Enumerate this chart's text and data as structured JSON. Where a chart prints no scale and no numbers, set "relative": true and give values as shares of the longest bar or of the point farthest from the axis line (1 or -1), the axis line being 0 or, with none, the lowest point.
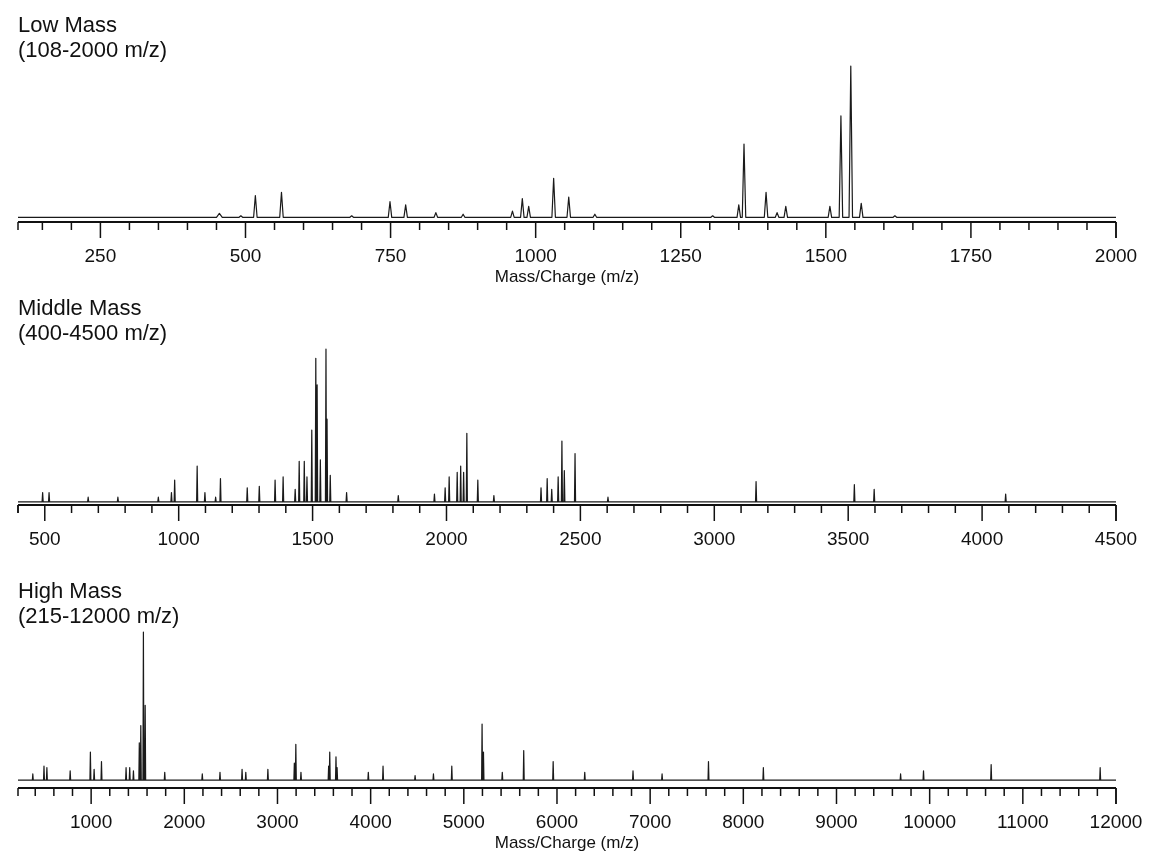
{
  "chart_data": [
    {
      "type": "line",
      "title": "Low Mass",
      "subtitle": "(108-2000 m/z)",
      "xlabel": "Mass/Charge (m/z)",
      "relative": true,
      "color": "#1a1a1a",
      "xlim": [
        108,
        2000
      ],
      "xticks": [
        {
          "value": 150,
          "label": null
        },
        {
          "value": 200,
          "label": null
        },
        250,
        {
          "value": 300,
          "label": null
        },
        {
          "value": 350,
          "label": null
        },
        {
          "value": 400,
          "label": null
        },
        {
          "value": 450,
          "label": null
        },
        500,
        {
          "value": 550,
          "label": null
        },
        {
          "value": 600,
          "label": null
        },
        {
          "value": 650,
          "label": null
        },
        {
          "value": 700,
          "label": null
        },
        750,
        {
          "value": 800,
          "label": null
        },
        {
          "value": 850,
          "label": null
        },
        {
          "value": 900,
          "label": null
        },
        {
          "value": 950,
          "label": null
        },
        1000,
        {
          "value": 1050,
          "label": null
        },
        {
          "value": 1100,
          "label": null
        },
        {
          "value": 1150,
          "label": null
        },
        {
          "value": 1200,
          "label": null
        },
        1250,
        {
          "value": 1300,
          "label": null
        },
        {
          "value": 1350,
          "label": null
        },
        {
          "value": 1400,
          "label": null
        },
        {
          "value": 1450,
          "label": null
        },
        1500,
        {
          "value": 1550,
          "label": null
        },
        {
          "value": 1600,
          "label": null
        },
        {
          "value": 1650,
          "label": null
        },
        {
          "value": 1700,
          "label": null
        },
        1750,
        {
          "value": 1800,
          "label": null
        },
        {
          "value": 1850,
          "label": null
        },
        {
          "value": 1900,
          "label": null
        },
        {
          "value": 1950,
          "label": null
        },
        2000
      ],
      "x": [
        108,
        450,
        455,
        460,
        489,
        492,
        495,
        514,
        517,
        520,
        559,
        562,
        565,
        680,
        683,
        686,
        746,
        749,
        752,
        773,
        776,
        779,
        825,
        828,
        831,
        872,
        875,
        878,
        957,
        960,
        963,
        974,
        977,
        980,
        985,
        988,
        991,
        1028,
        1031,
        1034,
        1054,
        1057,
        1060,
        1099,
        1102,
        1105,
        1302,
        1305,
        1308,
        1347,
        1350,
        1353,
        1356,
        1359,
        1362,
        1394,
        1397,
        1400,
        1413,
        1416,
        1419,
        1428,
        1431,
        1434,
        1504,
        1507,
        1510,
        1523,
        1526,
        1529,
        1540,
        1543,
        1546,
        1558,
        1561,
        1564,
        1616,
        1619,
        1622,
        2000
      ],
      "values": [
        0.03,
        0.03,
        0.055,
        0.03,
        0.03,
        0.04,
        0.03,
        0.03,
        0.17,
        0.03,
        0.03,
        0.19,
        0.03,
        0.03,
        0.04,
        0.03,
        0.03,
        0.13,
        0.03,
        0.03,
        0.11,
        0.03,
        0.03,
        0.06,
        0.03,
        0.03,
        0.05,
        0.03,
        0.03,
        0.07,
        0.03,
        0.03,
        0.15,
        0.03,
        0.03,
        0.1,
        0.03,
        0.03,
        0.28,
        0.03,
        0.03,
        0.16,
        0.03,
        0.03,
        0.05,
        0.03,
        0.03,
        0.04,
        0.03,
        0.03,
        0.11,
        0.03,
        0.03,
        0.5,
        0.03,
        0.03,
        0.19,
        0.03,
        0.03,
        0.06,
        0.03,
        0.03,
        0.1,
        0.03,
        0.03,
        0.1,
        0.03,
        0.03,
        0.68,
        0.03,
        0.03,
        1,
        0.03,
        0.03,
        0.12,
        0.03,
        0.03,
        0.04,
        0.03,
        0.03
      ]
    },
    {
      "type": "line",
      "title": "Middle Mass",
      "subtitle": "(400-4500 m/z)",
      "relative": true,
      "color": "#1a1a1a",
      "xlim": [
        400,
        4500
      ],
      "xticks": [
        {
          "value": 400,
          "label": null
        },
        500,
        {
          "value": 600,
          "label": null
        },
        {
          "value": 700,
          "label": null
        },
        {
          "value": 800,
          "label": null
        },
        {
          "value": 900,
          "label": null
        },
        1000,
        {
          "value": 1100,
          "label": null
        },
        {
          "value": 1200,
          "label": null
        },
        {
          "value": 1300,
          "label": null
        },
        {
          "value": 1400,
          "label": null
        },
        1500,
        {
          "value": 1600,
          "label": null
        },
        {
          "value": 1700,
          "label": null
        },
        {
          "value": 1800,
          "label": null
        },
        {
          "value": 1900,
          "label": null
        },
        2000,
        {
          "value": 2100,
          "label": null
        },
        {
          "value": 2200,
          "label": null
        },
        {
          "value": 2300,
          "label": null
        },
        {
          "value": 2400,
          "label": null
        },
        2500,
        {
          "value": 2600,
          "label": null
        },
        {
          "value": 2700,
          "label": null
        },
        {
          "value": 2800,
          "label": null
        },
        {
          "value": 2900,
          "label": null
        },
        3000,
        {
          "value": 3100,
          "label": null
        },
        {
          "value": 3200,
          "label": null
        },
        {
          "value": 3300,
          "label": null
        },
        {
          "value": 3400,
          "label": null
        },
        3500,
        {
          "value": 3600,
          "label": null
        },
        {
          "value": 3700,
          "label": null
        },
        {
          "value": 3800,
          "label": null
        },
        {
          "value": 3900,
          "label": null
        },
        4000,
        {
          "value": 4100,
          "label": null
        },
        {
          "value": 4200,
          "label": null
        },
        {
          "value": 4300,
          "label": null
        },
        {
          "value": 4400,
          "label": null
        },
        4500
      ],
      "x": [
        400,
        490,
        492,
        494,
        514,
        516,
        518,
        660,
        662,
        664,
        771,
        773,
        775,
        922,
        924,
        926,
        971,
        973,
        975,
        983,
        985,
        987,
        1067,
        1069,
        1071,
        1096,
        1098,
        1100,
        1136,
        1138,
        1140,
        1154,
        1156,
        1158,
        1254,
        1256,
        1258,
        1299,
        1301,
        1303,
        1358,
        1360,
        1362,
        1388,
        1390,
        1392,
        1433,
        1435,
        1437,
        1448,
        1450,
        1452,
        1467,
        1469,
        1471,
        1477,
        1479,
        1481,
        1495,
        1497,
        1499,
        1510,
        1512,
        1514,
        1515,
        1517,
        1519,
        1527,
        1529,
        1531,
        1548,
        1550,
        1552,
        1552,
        1554,
        1556,
        1564,
        1566,
        1568,
        1625,
        1627,
        1629,
        1818,
        1820,
        1822,
        1953,
        1955,
        1957,
        1993,
        1995,
        1997,
        2008,
        2010,
        2012,
        2038,
        2040,
        2042,
        2051,
        2053,
        2055,
        2062,
        2064,
        2066,
        2074,
        2076,
        2078,
        2115,
        2117,
        2119,
        2175,
        2177,
        2179,
        2351,
        2353,
        2355,
        2374,
        2376,
        2378,
        2391,
        2393,
        2395,
        2415,
        2417,
        2419,
        2429,
        2431,
        2433,
        2438,
        2440,
        2442,
        2478,
        2480,
        2482,
        2601,
        2603,
        2605,
        3154,
        3156,
        3158,
        3521,
        3523,
        3525,
        3595,
        3597,
        3599,
        4086,
        4088,
        4090,
        4500
      ],
      "values": [
        0.02,
        0.02,
        0.08,
        0.02,
        0.02,
        0.08,
        0.02,
        0.02,
        0.05,
        0.02,
        0.02,
        0.05,
        0.02,
        0.02,
        0.05,
        0.02,
        0.02,
        0.08,
        0.02,
        0.02,
        0.16,
        0.02,
        0.02,
        0.25,
        0.02,
        0.02,
        0.08,
        0.02,
        0.02,
        0.05,
        0.02,
        0.02,
        0.17,
        0.02,
        0.02,
        0.11,
        0.02,
        0.02,
        0.12,
        0.02,
        0.02,
        0.16,
        0.02,
        0.02,
        0.18,
        0.02,
        0.02,
        0.1,
        0.02,
        0.02,
        0.28,
        0.02,
        0.02,
        0.28,
        0.02,
        0.02,
        0.18,
        0.02,
        0.02,
        0.48,
        0.02,
        0.02,
        0.94,
        0.02,
        0.02,
        0.77,
        0.02,
        0.02,
        0.29,
        0.02,
        0.02,
        1,
        0.02,
        0.02,
        0.55,
        0.02,
        0.02,
        0.19,
        0.02,
        0.02,
        0.08,
        0.02,
        0.02,
        0.06,
        0.02,
        0.02,
        0.07,
        0.02,
        0.02,
        0.11,
        0.02,
        0.02,
        0.18,
        0.02,
        0.02,
        0.21,
        0.02,
        0.02,
        0.25,
        0.02,
        0.02,
        0.21,
        0.02,
        0.02,
        0.46,
        0.02,
        0.02,
        0.16,
        0.02,
        0.02,
        0.06,
        0.02,
        0.02,
        0.11,
        0.02,
        0.02,
        0.17,
        0.02,
        0.02,
        0.1,
        0.02,
        0.02,
        0.18,
        0.02,
        0.02,
        0.41,
        0.02,
        0.02,
        0.22,
        0.02,
        0.02,
        0.33,
        0.02,
        0.02,
        0.05,
        0.02,
        0.02,
        0.15,
        0.02,
        0.02,
        0.13,
        0.02,
        0.02,
        0.1,
        0.02,
        0.02,
        0.07,
        0.02,
        0.02
      ]
    },
    {
      "type": "line",
      "title": "High Mass",
      "subtitle": "(215-12000 m/z)",
      "xlabel": "Mass/Charge (m/z)",
      "relative": true,
      "color": "#1a1a1a",
      "xlim": [
        215,
        12000
      ],
      "xticks": [
        {
          "value": 400,
          "label": null
        },
        {
          "value": 600,
          "label": null
        },
        {
          "value": 800,
          "label": null
        },
        1000,
        {
          "value": 1200,
          "label": null
        },
        {
          "value": 1400,
          "label": null
        },
        {
          "value": 1600,
          "label": null
        },
        {
          "value": 1800,
          "label": null
        },
        2000,
        {
          "value": 2200,
          "label": null
        },
        {
          "value": 2400,
          "label": null
        },
        {
          "value": 2600,
          "label": null
        },
        {
          "value": 2800,
          "label": null
        },
        3000,
        {
          "value": 3200,
          "label": null
        },
        {
          "value": 3400,
          "label": null
        },
        {
          "value": 3600,
          "label": null
        },
        {
          "value": 3800,
          "label": null
        },
        4000,
        {
          "value": 4200,
          "label": null
        },
        {
          "value": 4400,
          "label": null
        },
        {
          "value": 4600,
          "label": null
        },
        {
          "value": 4800,
          "label": null
        },
        5000,
        {
          "value": 5200,
          "label": null
        },
        {
          "value": 5400,
          "label": null
        },
        {
          "value": 5600,
          "label": null
        },
        {
          "value": 5800,
          "label": null
        },
        6000,
        {
          "value": 6200,
          "label": null
        },
        {
          "value": 6400,
          "label": null
        },
        {
          "value": 6600,
          "label": null
        },
        {
          "value": 6800,
          "label": null
        },
        7000,
        {
          "value": 7200,
          "label": null
        },
        {
          "value": 7400,
          "label": null
        },
        {
          "value": 7600,
          "label": null
        },
        {
          "value": 7800,
          "label": null
        },
        8000,
        {
          "value": 8200,
          "label": null
        },
        {
          "value": 8400,
          "label": null
        },
        {
          "value": 8600,
          "label": null
        },
        {
          "value": 8800,
          "label": null
        },
        9000,
        {
          "value": 9200,
          "label": null
        },
        {
          "value": 9400,
          "label": null
        },
        {
          "value": 9600,
          "label": null
        },
        {
          "value": 9800,
          "label": null
        },
        10000,
        {
          "value": 10200,
          "label": null
        },
        {
          "value": 10400,
          "label": null
        },
        {
          "value": 10600,
          "label": null
        },
        {
          "value": 10800,
          "label": null
        },
        11000,
        {
          "value": 11200,
          "label": null
        },
        {
          "value": 11400,
          "label": null
        },
        {
          "value": 11600,
          "label": null
        },
        {
          "value": 11800,
          "label": null
        },
        12000
      ],
      "x": [
        215,
        369,
        374,
        379,
        489,
        494,
        499,
        520,
        525,
        530,
        770,
        775,
        780,
        987,
        992,
        997,
        1027,
        1032,
        1037,
        1106,
        1111,
        1116,
        1370,
        1375,
        1380,
        1409,
        1414,
        1419,
        1449,
        1454,
        1459,
        1512,
        1517,
        1522,
        1528,
        1533,
        1538,
        1556,
        1561,
        1566,
        1575,
        1580,
        1585,
        1785,
        1790,
        1795,
        2188,
        2193,
        2198,
        2378,
        2383,
        2388,
        2615,
        2620,
        2625,
        2655,
        2660,
        2665,
        2892,
        2897,
        2902,
        3176,
        3181,
        3186,
        3192,
        3197,
        3202,
        3247,
        3252,
        3257,
        3544,
        3549,
        3554,
        3556,
        3561,
        3566,
        3623,
        3628,
        3633,
        3635,
        3640,
        3645,
        3970,
        3975,
        3980,
        4128,
        4133,
        4138,
        4472,
        4477,
        4482,
        4669,
        4674,
        4679,
        4866,
        4871,
        4876,
        5191,
        5196,
        5201,
        5206,
        5211,
        5216,
        5408,
        5413,
        5418,
        5638,
        5643,
        5648,
        5954,
        5959,
        5964,
        6293,
        6298,
        6303,
        6811,
        6816,
        6821,
        7123,
        7128,
        7133,
        7621,
        7626,
        7631,
        8210,
        8215,
        8220,
        9683,
        9688,
        9693,
        9929,
        9934,
        9939,
        10655,
        10660,
        10665,
        11825,
        11830,
        11835,
        12000
      ],
      "values": [
        0.05,
        0.05,
        0.09,
        0.05,
        0.05,
        0.14,
        0.05,
        0.05,
        0.13,
        0.05,
        0.05,
        0.11,
        0.05,
        0.05,
        0.23,
        0.05,
        0.05,
        0.12,
        0.05,
        0.05,
        0.17,
        0.05,
        0.05,
        0.13,
        0.05,
        0.05,
        0.13,
        0.05,
        0.05,
        0.11,
        0.05,
        0.05,
        0.29,
        0.05,
        0.05,
        0.4,
        0.05,
        0.05,
        1,
        0.05,
        0.05,
        0.53,
        0.05,
        0.05,
        0.1,
        0.05,
        0.05,
        0.09,
        0.05,
        0.05,
        0.1,
        0.05,
        0.05,
        0.12,
        0.05,
        0.05,
        0.1,
        0.05,
        0.05,
        0.12,
        0.05,
        0.05,
        0.16,
        0.05,
        0.05,
        0.28,
        0.05,
        0.05,
        0.1,
        0.05,
        0.05,
        0.14,
        0.05,
        0.05,
        0.23,
        0.05,
        0.05,
        0.2,
        0.05,
        0.05,
        0.13,
        0.05,
        0.05,
        0.1,
        0.05,
        0.05,
        0.14,
        0.05,
        0.05,
        0.08,
        0.05,
        0.05,
        0.09,
        0.05,
        0.05,
        0.14,
        0.05,
        0.05,
        0.41,
        0.05,
        0.05,
        0.23,
        0.05,
        0.05,
        0.1,
        0.05,
        0.05,
        0.24,
        0.05,
        0.05,
        0.17,
        0.05,
        0.05,
        0.1,
        0.05,
        0.05,
        0.11,
        0.05,
        0.05,
        0.09,
        0.05,
        0.05,
        0.17,
        0.05,
        0.05,
        0.13,
        0.05,
        0.05,
        0.09,
        0.05,
        0.05,
        0.11,
        0.05,
        0.05,
        0.15,
        0.05,
        0.05,
        0.13,
        0.05,
        0.05
      ]
    }
  ]
}
